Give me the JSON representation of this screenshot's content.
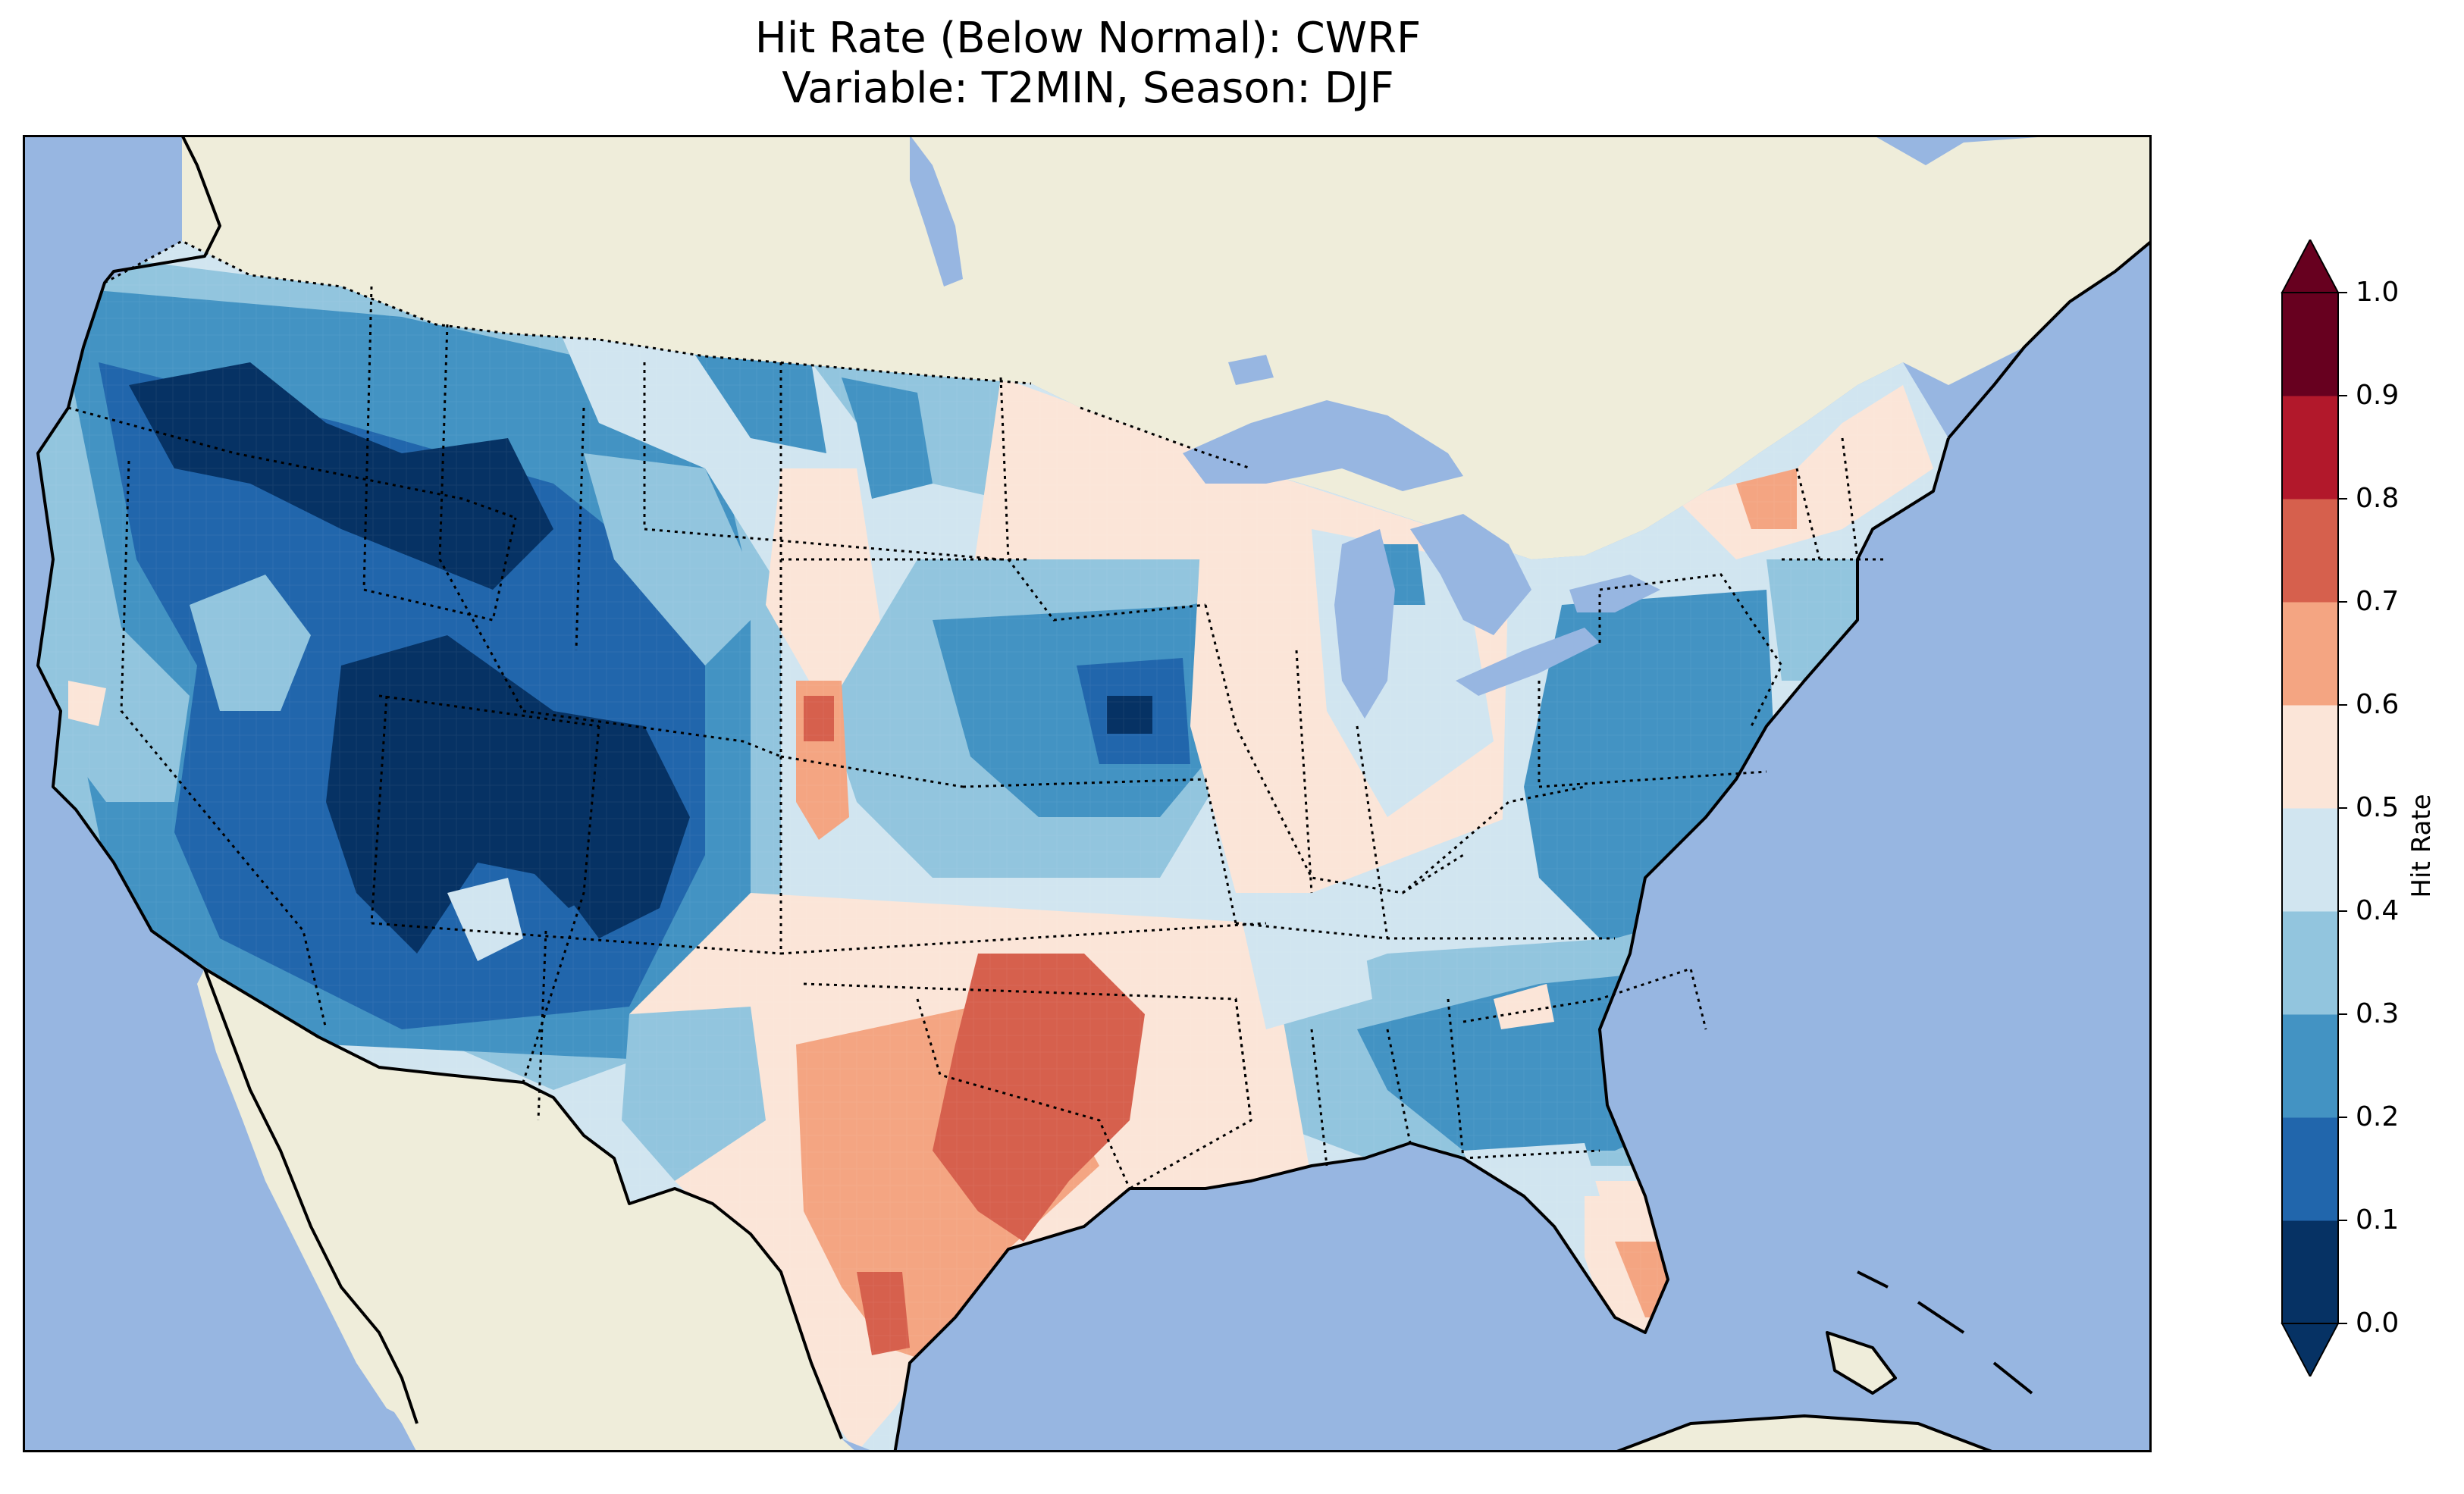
{
  "figure": {
    "title_line1": "Hit Rate (Below Normal): CWRF",
    "title_line2": "Variable: T2MIN, Season: DJF"
  },
  "colors": {
    "ocean": "#97b6e1",
    "land": "#efedda",
    "lake": "#97b6e1",
    "coastline": "#000000",
    "state_border": "#000000"
  },
  "colorbar": {
    "label": "Hit Rate",
    "ticks": [
      "0.0",
      "0.1",
      "0.2",
      "0.3",
      "0.4",
      "0.5",
      "0.6",
      "0.7",
      "0.8",
      "0.9",
      "1.0"
    ],
    "bins": [
      {
        "range": [
          0.0,
          0.1
        ],
        "color": "#063264"
      },
      {
        "range": [
          0.1,
          0.2
        ],
        "color": "#2166ac"
      },
      {
        "range": [
          0.2,
          0.3
        ],
        "color": "#4393c3"
      },
      {
        "range": [
          0.3,
          0.4
        ],
        "color": "#92c5de"
      },
      {
        "range": [
          0.4,
          0.5
        ],
        "color": "#d1e5f0"
      },
      {
        "range": [
          0.5,
          0.6
        ],
        "color": "#fbe5d8"
      },
      {
        "range": [
          0.6,
          0.7
        ],
        "color": "#f4a582"
      },
      {
        "range": [
          0.7,
          0.8
        ],
        "color": "#d6604d"
      },
      {
        "range": [
          0.8,
          0.9
        ],
        "color": "#b2182b"
      },
      {
        "range": [
          0.9,
          1.0
        ],
        "color": "#67001f"
      }
    ],
    "extend": "both"
  },
  "map": {
    "variable": "T2MIN",
    "season": "DJF",
    "model": "CWRF",
    "metric": "Hit Rate (Below Normal)"
  }
}
